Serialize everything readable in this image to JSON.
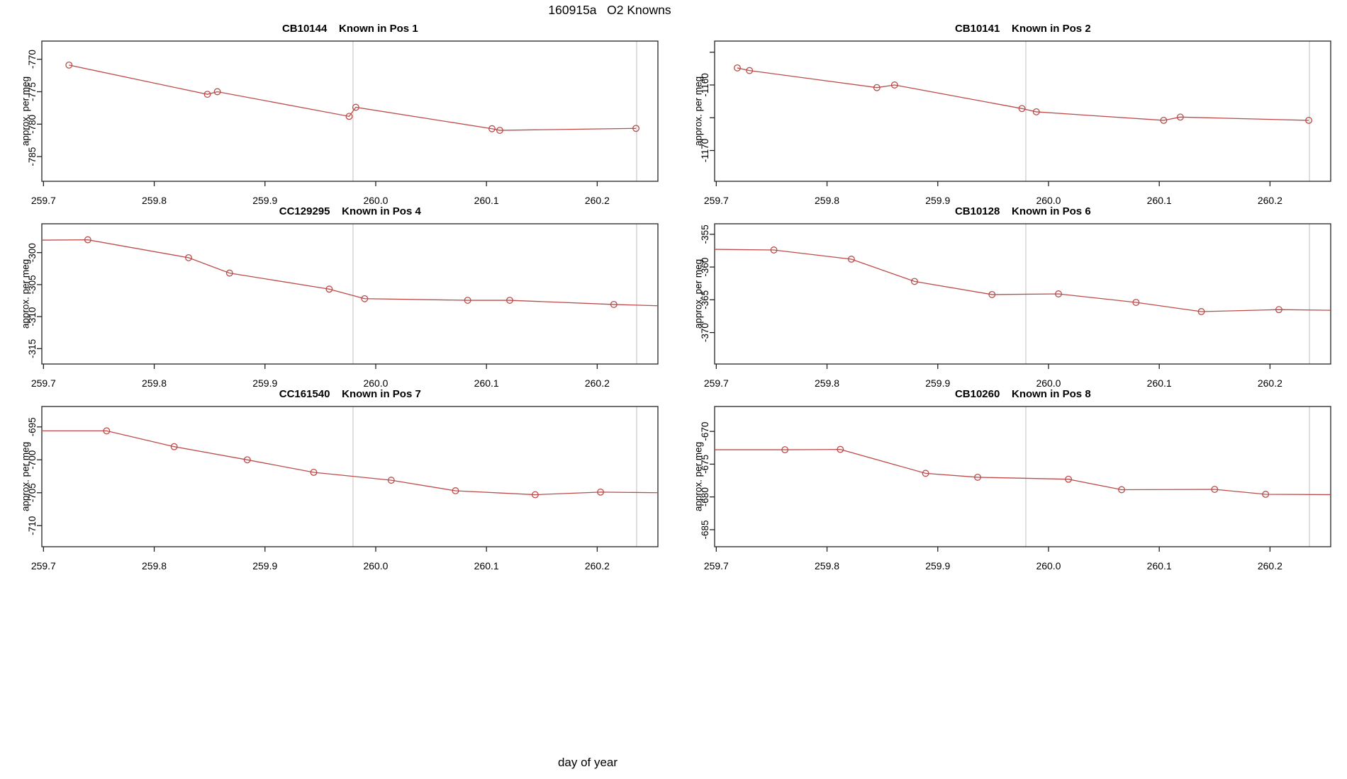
{
  "page": {
    "main_title": "160915a   O2 Knowns",
    "x_axis_label": "day of year",
    "y_axis_label": "approx. per meg"
  },
  "colors": {
    "series": "#bc4b49",
    "axis": "#222222",
    "vline": "#c9c9c9",
    "text": "#000000",
    "background": "#ffffff"
  },
  "chart_data": {
    "type": "line",
    "title": "160915a   O2 Knowns",
    "xlabel": "day of year",
    "ylabel": "approx. per meg",
    "marker": "open-circle",
    "grid": false,
    "xlim": [
      259.6985,
      260.2548
    ],
    "xticks": [
      259.7,
      259.8,
      259.9,
      260.0,
      260.1,
      260.2
    ],
    "xtick_labels": [
      "259.7",
      "259.8",
      "259.9",
      "260.0",
      "260.1",
      "260.2"
    ],
    "vlines": [
      259.9795,
      260.2356
    ],
    "panels": [
      {
        "id": "CB10144",
        "title": "CB10144    Known in Pos 1",
        "sample_id": "CB10144",
        "position_label": "Known in Pos 1",
        "ylim": [
          -788.8,
          -767.2
        ],
        "yticks": [
          -785,
          -780,
          -775,
          -770
        ],
        "ytick_labels": [
          "-785",
          "-780",
          "-775",
          "-770"
        ],
        "x": [
          259.723,
          259.848,
          259.857,
          259.976,
          259.982,
          260.105,
          260.112,
          260.235
        ],
        "y": [
          -770.9,
          -775.4,
          -775.0,
          -778.8,
          -777.4,
          -780.7,
          -780.95,
          -780.65
        ],
        "edge_left_y": null,
        "edge_right_y": null
      },
      {
        "id": "CB10141",
        "title": "CB10141    Known in Pos 2",
        "sample_id": "CB10141",
        "position_label": "Known in Pos 2",
        "ylim": [
          -1174.7,
          -1153.3
        ],
        "yticks": [
          -1170,
          -1165,
          -1160,
          -1155
        ],
        "ytick_labels": [
          "-1170",
          "",
          "-1160",
          ""
        ],
        "x": [
          259.719,
          259.73,
          259.845,
          259.861,
          259.976,
          259.989,
          260.104,
          260.119,
          260.235
        ],
        "y": [
          -1157.4,
          -1157.8,
          -1160.4,
          -1160.0,
          -1163.6,
          -1164.1,
          -1165.4,
          -1164.9,
          -1165.4
        ],
        "edge_left_y": null,
        "edge_right_y": null
      },
      {
        "id": "CC129295",
        "title": "CC129295    Known in Pos 4",
        "sample_id": "CC129295",
        "position_label": "Known in Pos 4",
        "ylim": [
          -317.4,
          -295.5
        ],
        "yticks": [
          -315,
          -310,
          -305,
          -300
        ],
        "ytick_labels": [
          "-315",
          "-310",
          "-305",
          "-300"
        ],
        "x": [
          259.74,
          259.831,
          259.868,
          259.958,
          259.99,
          260.083,
          260.121,
          260.215
        ],
        "y": [
          -298.0,
          -300.8,
          -303.2,
          -305.7,
          -307.2,
          -307.45,
          -307.45,
          -308.1
        ],
        "edge_left_y": -298.05,
        "edge_right_y": -308.3
      },
      {
        "id": "CB10128",
        "title": "CB10128    Known in Pos 6",
        "sample_id": "CB10128",
        "position_label": "Known in Pos 6",
        "ylim": [
          -374.8,
          -353.4
        ],
        "yticks": [
          -370,
          -365,
          -360,
          -355
        ],
        "ytick_labels": [
          "-370",
          "-365",
          "-360",
          "-355"
        ],
        "x": [
          259.752,
          259.822,
          259.879,
          259.949,
          260.009,
          260.079,
          260.138,
          260.208
        ],
        "y": [
          -357.4,
          -358.8,
          -362.2,
          -364.2,
          -364.1,
          -365.4,
          -366.8,
          -366.5
        ],
        "edge_left_y": -357.3,
        "edge_right_y": -366.6
      },
      {
        "id": "CC161540",
        "title": "CC161540    Known in Pos 7",
        "sample_id": "CC161540",
        "position_label": "Known in Pos 7",
        "ylim": [
          -713.2,
          -691.9
        ],
        "yticks": [
          -710,
          -705,
          -700,
          -695
        ],
        "ytick_labels": [
          "-710",
          "-705",
          "-700",
          "-695"
        ],
        "x": [
          259.757,
          259.818,
          259.884,
          259.944,
          260.014,
          260.072,
          260.144,
          260.203
        ],
        "y": [
          -695.6,
          -698.0,
          -700.0,
          -701.9,
          -703.1,
          -704.7,
          -705.3,
          -704.9
        ],
        "edge_left_y": -695.6,
        "edge_right_y": -705.0
      },
      {
        "id": "CB10260",
        "title": "CB10260    Known in Pos 8",
        "sample_id": "CB10260",
        "position_label": "Known in Pos 8",
        "ylim": [
          -687.6,
          -666.2
        ],
        "yticks": [
          -685,
          -680,
          -675,
          -670
        ],
        "ytick_labels": [
          "-685",
          "-680",
          "-675",
          "-670"
        ],
        "x": [
          259.762,
          259.812,
          259.889,
          259.936,
          260.018,
          260.066,
          260.15,
          260.196
        ],
        "y": [
          -672.8,
          -672.75,
          -676.4,
          -677.0,
          -677.3,
          -678.9,
          -678.85,
          -679.6
        ],
        "edge_left_y": -672.8,
        "edge_right_y": -679.65
      }
    ]
  }
}
